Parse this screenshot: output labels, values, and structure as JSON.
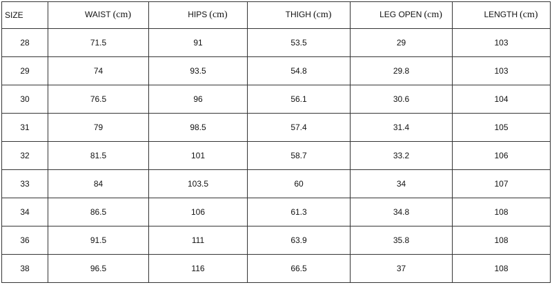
{
  "table": {
    "headers": [
      {
        "name": "SIZE"
      },
      {
        "name": "WAIST",
        "unit": "(cm)"
      },
      {
        "name": "HIPS",
        "unit": "(cm)"
      },
      {
        "name": "THIGH",
        "unit": "(cm)"
      },
      {
        "name": "LEG OPEN",
        "unit": "(cm)"
      },
      {
        "name": "LENGTH",
        "unit": "(cm)"
      }
    ],
    "rows": [
      [
        28,
        71.5,
        91,
        53.5,
        29,
        103
      ],
      [
        29,
        74,
        93.5,
        54.8,
        29.8,
        103
      ],
      [
        30,
        76.5,
        96,
        56.1,
        30.6,
        104
      ],
      [
        31,
        79,
        98.5,
        57.4,
        31.4,
        105
      ],
      [
        32,
        81.5,
        101,
        58.7,
        33.2,
        106
      ],
      [
        33,
        84,
        103.5,
        60,
        34,
        107
      ],
      [
        34,
        86.5,
        106,
        61.3,
        34.8,
        108
      ],
      [
        36,
        91.5,
        111,
        63.9,
        35.8,
        108
      ],
      [
        38,
        96.5,
        116,
        66.5,
        37,
        108
      ]
    ]
  }
}
